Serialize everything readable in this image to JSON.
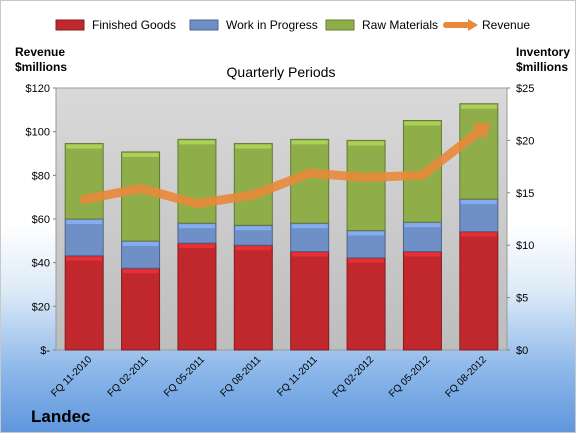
{
  "company": "Landec",
  "chart_data": {
    "type": "bar",
    "stacked": true,
    "title": "Quarterly Periods",
    "company": "Landec",
    "categories": [
      "FQ 11-2010",
      "FQ 02-2011",
      "FQ 05-2011",
      "FQ 08-2011",
      "FQ 11-2011",
      "FQ 02-2012",
      "FQ 05-2012",
      "FQ 08-2012"
    ],
    "series": [
      {
        "name": "Finished Goods",
        "axis": "right",
        "color": "#c0282d",
        "values": [
          9.0,
          7.8,
          10.2,
          10.0,
          9.4,
          8.8,
          9.4,
          11.3
        ]
      },
      {
        "name": "Work in Progress",
        "axis": "right",
        "color": "#6f8fc7",
        "values": [
          3.5,
          2.6,
          1.9,
          1.9,
          2.7,
          2.6,
          2.8,
          3.1
        ]
      },
      {
        "name": "Raw Materials",
        "axis": "right",
        "color": "#8fae4a",
        "values": [
          7.2,
          8.5,
          8.0,
          7.8,
          8.0,
          8.6,
          9.7,
          9.1
        ]
      },
      {
        "name": "Revenue",
        "axis": "left",
        "type": "line",
        "color": "#e8883a",
        "values": [
          69,
          74,
          67,
          71,
          81,
          79,
          80,
          100
        ]
      }
    ],
    "left_axis": {
      "label": "Revenue\n$millions",
      "ylim": [
        0,
        120
      ],
      "ticks": [
        "$-",
        "$20",
        "$40",
        "$60",
        "$80",
        "$100",
        "$120"
      ]
    },
    "right_axis": {
      "label": "Inventory\n$millions",
      "ylim": [
        0,
        25
      ],
      "ticks": [
        "$0",
        "$5",
        "$10",
        "$15",
        "$20",
        "$25"
      ]
    },
    "legend": "top",
    "grid": false
  }
}
